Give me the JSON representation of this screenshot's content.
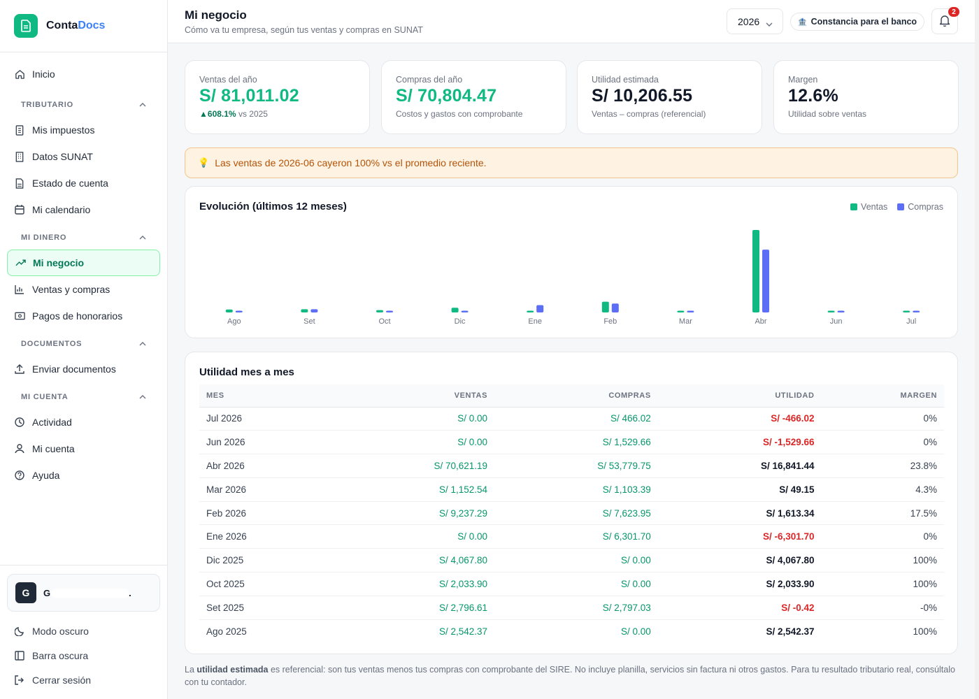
{
  "brand": {
    "name_main": "Conta",
    "name_accent": "Docs"
  },
  "nav": {
    "home": "Inicio",
    "sections": [
      {
        "title": "TRIBUTARIO",
        "items": [
          "Mis impuestos",
          "Datos SUNAT",
          "Estado de cuenta",
          "Mi calendario"
        ]
      },
      {
        "title": "MI DINERO",
        "items": [
          "Mi negocio",
          "Ventas y compras",
          "Pagos de honorarios"
        ]
      },
      {
        "title": "DOCUMENTOS",
        "items": [
          "Enviar documentos"
        ]
      },
      {
        "title": "MI CUENTA",
        "items": [
          "Actividad",
          "Mi cuenta",
          "Ayuda"
        ]
      }
    ]
  },
  "account": {
    "initial": "G",
    "name_start": "G",
    "name_end": "."
  },
  "bottom": {
    "dark_mode": "Modo oscuro",
    "dark_bar": "Barra oscura",
    "logout": "Cerrar sesión"
  },
  "header": {
    "title": "Mi negocio",
    "subtitle": "Cómo va tu empresa, según tus ventas y compras en SUNAT",
    "year": "2026",
    "bank_button": "Constancia para el banco",
    "notifications": "2"
  },
  "kpis": [
    {
      "label": "Ventas del año",
      "value": "S/ 81,011.02",
      "delta": "608.1%",
      "sub": "vs 2025"
    },
    {
      "label": "Compras del año",
      "value": "S/ 70,804.47",
      "sub": "Costos y gastos con comprobante"
    },
    {
      "label": "Utilidad estimada",
      "value": "S/ 10,206.55",
      "sub": "Ventas – compras (referencial)"
    },
    {
      "label": "Margen",
      "value": "12.6%",
      "sub": "Utilidad sobre ventas"
    }
  ],
  "alert": "Las ventas de 2026-06 cayeron 100% vs el promedio reciente.",
  "chart": {
    "title": "Evolución (últimos 12 meses)"
  },
  "chart_data": {
    "type": "bar",
    "categories": [
      "Ago",
      "Set",
      "Oct",
      "Dic",
      "Ene",
      "Feb",
      "Mar",
      "Abr",
      "Jun",
      "Jul"
    ],
    "series": [
      {
        "name": "Ventas",
        "color": "#10b981",
        "values": [
          2542.37,
          2796.61,
          2033.9,
          4067.8,
          0,
          9237.29,
          1152.54,
          70621.19,
          0,
          0
        ]
      },
      {
        "name": "Compras",
        "color": "#5b6ef5",
        "values": [
          0,
          2797.03,
          0,
          0,
          6301.7,
          7623.95,
          1103.39,
          53779.75,
          1529.66,
          466.02
        ]
      }
    ]
  },
  "table": {
    "title": "Utilidad mes a mes",
    "headers": [
      "MES",
      "VENTAS",
      "COMPRAS",
      "UTILIDAD",
      "MARGEN"
    ],
    "rows": [
      {
        "mes": "Jul 2026",
        "ventas": "S/ 0.00",
        "compras": "S/ 466.02",
        "utilidad": "S/ -466.02",
        "margen": "0%",
        "neg": true
      },
      {
        "mes": "Jun 2026",
        "ventas": "S/ 0.00",
        "compras": "S/ 1,529.66",
        "utilidad": "S/ -1,529.66",
        "margen": "0%",
        "neg": true
      },
      {
        "mes": "Abr 2026",
        "ventas": "S/ 70,621.19",
        "compras": "S/ 53,779.75",
        "utilidad": "S/ 16,841.44",
        "margen": "23.8%",
        "neg": false
      },
      {
        "mes": "Mar 2026",
        "ventas": "S/ 1,152.54",
        "compras": "S/ 1,103.39",
        "utilidad": "S/ 49.15",
        "margen": "4.3%",
        "neg": false
      },
      {
        "mes": "Feb 2026",
        "ventas": "S/ 9,237.29",
        "compras": "S/ 7,623.95",
        "utilidad": "S/ 1,613.34",
        "margen": "17.5%",
        "neg": false
      },
      {
        "mes": "Ene 2026",
        "ventas": "S/ 0.00",
        "compras": "S/ 6,301.70",
        "utilidad": "S/ -6,301.70",
        "margen": "0%",
        "neg": true
      },
      {
        "mes": "Dic 2025",
        "ventas": "S/ 4,067.80",
        "compras": "S/ 0.00",
        "utilidad": "S/ 4,067.80",
        "margen": "100%",
        "neg": false
      },
      {
        "mes": "Oct 2025",
        "ventas": "S/ 2,033.90",
        "compras": "S/ 0.00",
        "utilidad": "S/ 2,033.90",
        "margen": "100%",
        "neg": false
      },
      {
        "mes": "Set 2025",
        "ventas": "S/ 2,796.61",
        "compras": "S/ 2,797.03",
        "utilidad": "S/ -0.42",
        "margen": "-0%",
        "neg": true
      },
      {
        "mes": "Ago 2025",
        "ventas": "S/ 2,542.37",
        "compras": "S/ 0.00",
        "utilidad": "S/ 2,542.37",
        "margen": "100%",
        "neg": false
      }
    ]
  },
  "footnote": {
    "prefix": "La ",
    "bold": "utilidad estimada",
    "text": " es referencial: son tus ventas menos tus compras con comprobante del SIRE. No incluye planilla, servicios sin factura ni otros gastos. Para tu resultado tributario real, consúltalo con tu contador."
  }
}
